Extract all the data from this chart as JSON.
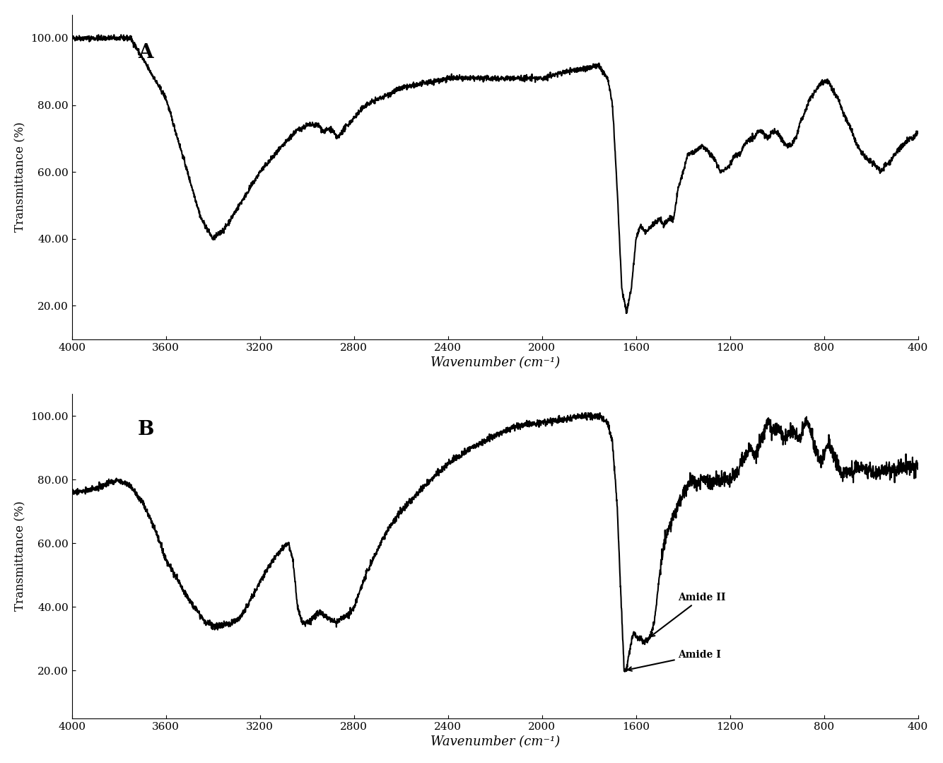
{
  "title_A": "A",
  "title_B": "B",
  "xlabel": "Wavenumber (cm⁻¹)",
  "ylabel": "Transmittance (%)",
  "xlim": [
    4000,
    400
  ],
  "ylim_A": [
    10,
    107
  ],
  "ylim_B": [
    5,
    107
  ],
  "yticks": [
    20.0,
    40.0,
    60.0,
    80.0,
    100.0
  ],
  "ytick_labels": [
    "20.00",
    "40.00",
    "60.00",
    "80.00",
    "100.00"
  ],
  "xticks": [
    4000,
    3600,
    3200,
    2800,
    2400,
    2000,
    1600,
    1200,
    800,
    400
  ],
  "line_color": "#000000",
  "bg_color": "#ffffff",
  "annotation_amide_I": "Amide I",
  "annotation_amide_II": "Amide II",
  "figsize": [
    13.34,
    10.79
  ],
  "dpi": 100
}
